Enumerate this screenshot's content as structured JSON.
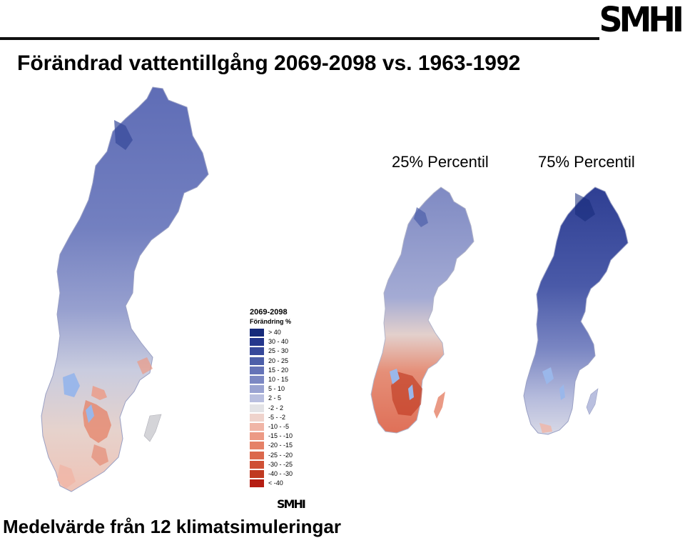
{
  "header": {
    "brand": "SMHI",
    "title": "Förändrad vattentillgång 2069-2098 vs. 1963-1992"
  },
  "maps": {
    "percentile_25_label": "25% Percentil",
    "percentile_75_label": "75% Percentil"
  },
  "legend": {
    "title": "2069-2098",
    "subtitle": "Förändring %",
    "brand": "SMHI",
    "classes": [
      {
        "label": "> 40",
        "color": "#162a7a"
      },
      {
        "label": "30 - 40",
        "color": "#24368c"
      },
      {
        "label": "25 - 30",
        "color": "#36489a"
      },
      {
        "label": "20 - 25",
        "color": "#4d5fa9"
      },
      {
        "label": "15 - 20",
        "color": "#6573b7"
      },
      {
        "label": "10 - 15",
        "color": "#7c88c3"
      },
      {
        "label": "5 - 10",
        "color": "#9aa3d1"
      },
      {
        "label": "2 - 5",
        "color": "#b9bfdf"
      },
      {
        "label": "-2 - 2",
        "color": "#e3e3e6"
      },
      {
        "label": "-5 - -2",
        "color": "#efd3cc"
      },
      {
        "label": "-10 - -5",
        "color": "#f0b5a6"
      },
      {
        "label": "-15 - -10",
        "color": "#ec9a85"
      },
      {
        "label": "-20 - -15",
        "color": "#e58167"
      },
      {
        "label": "-25 - -20",
        "color": "#db684c"
      },
      {
        "label": "-30 - -25",
        "color": "#cf5035"
      },
      {
        "label": "-40 - -30",
        "color": "#c03a22"
      },
      {
        "label": "< -40",
        "color": "#b51d12"
      }
    ]
  },
  "footer": {
    "text": "Medelvärde från 12 klimatsimuleringar"
  }
}
